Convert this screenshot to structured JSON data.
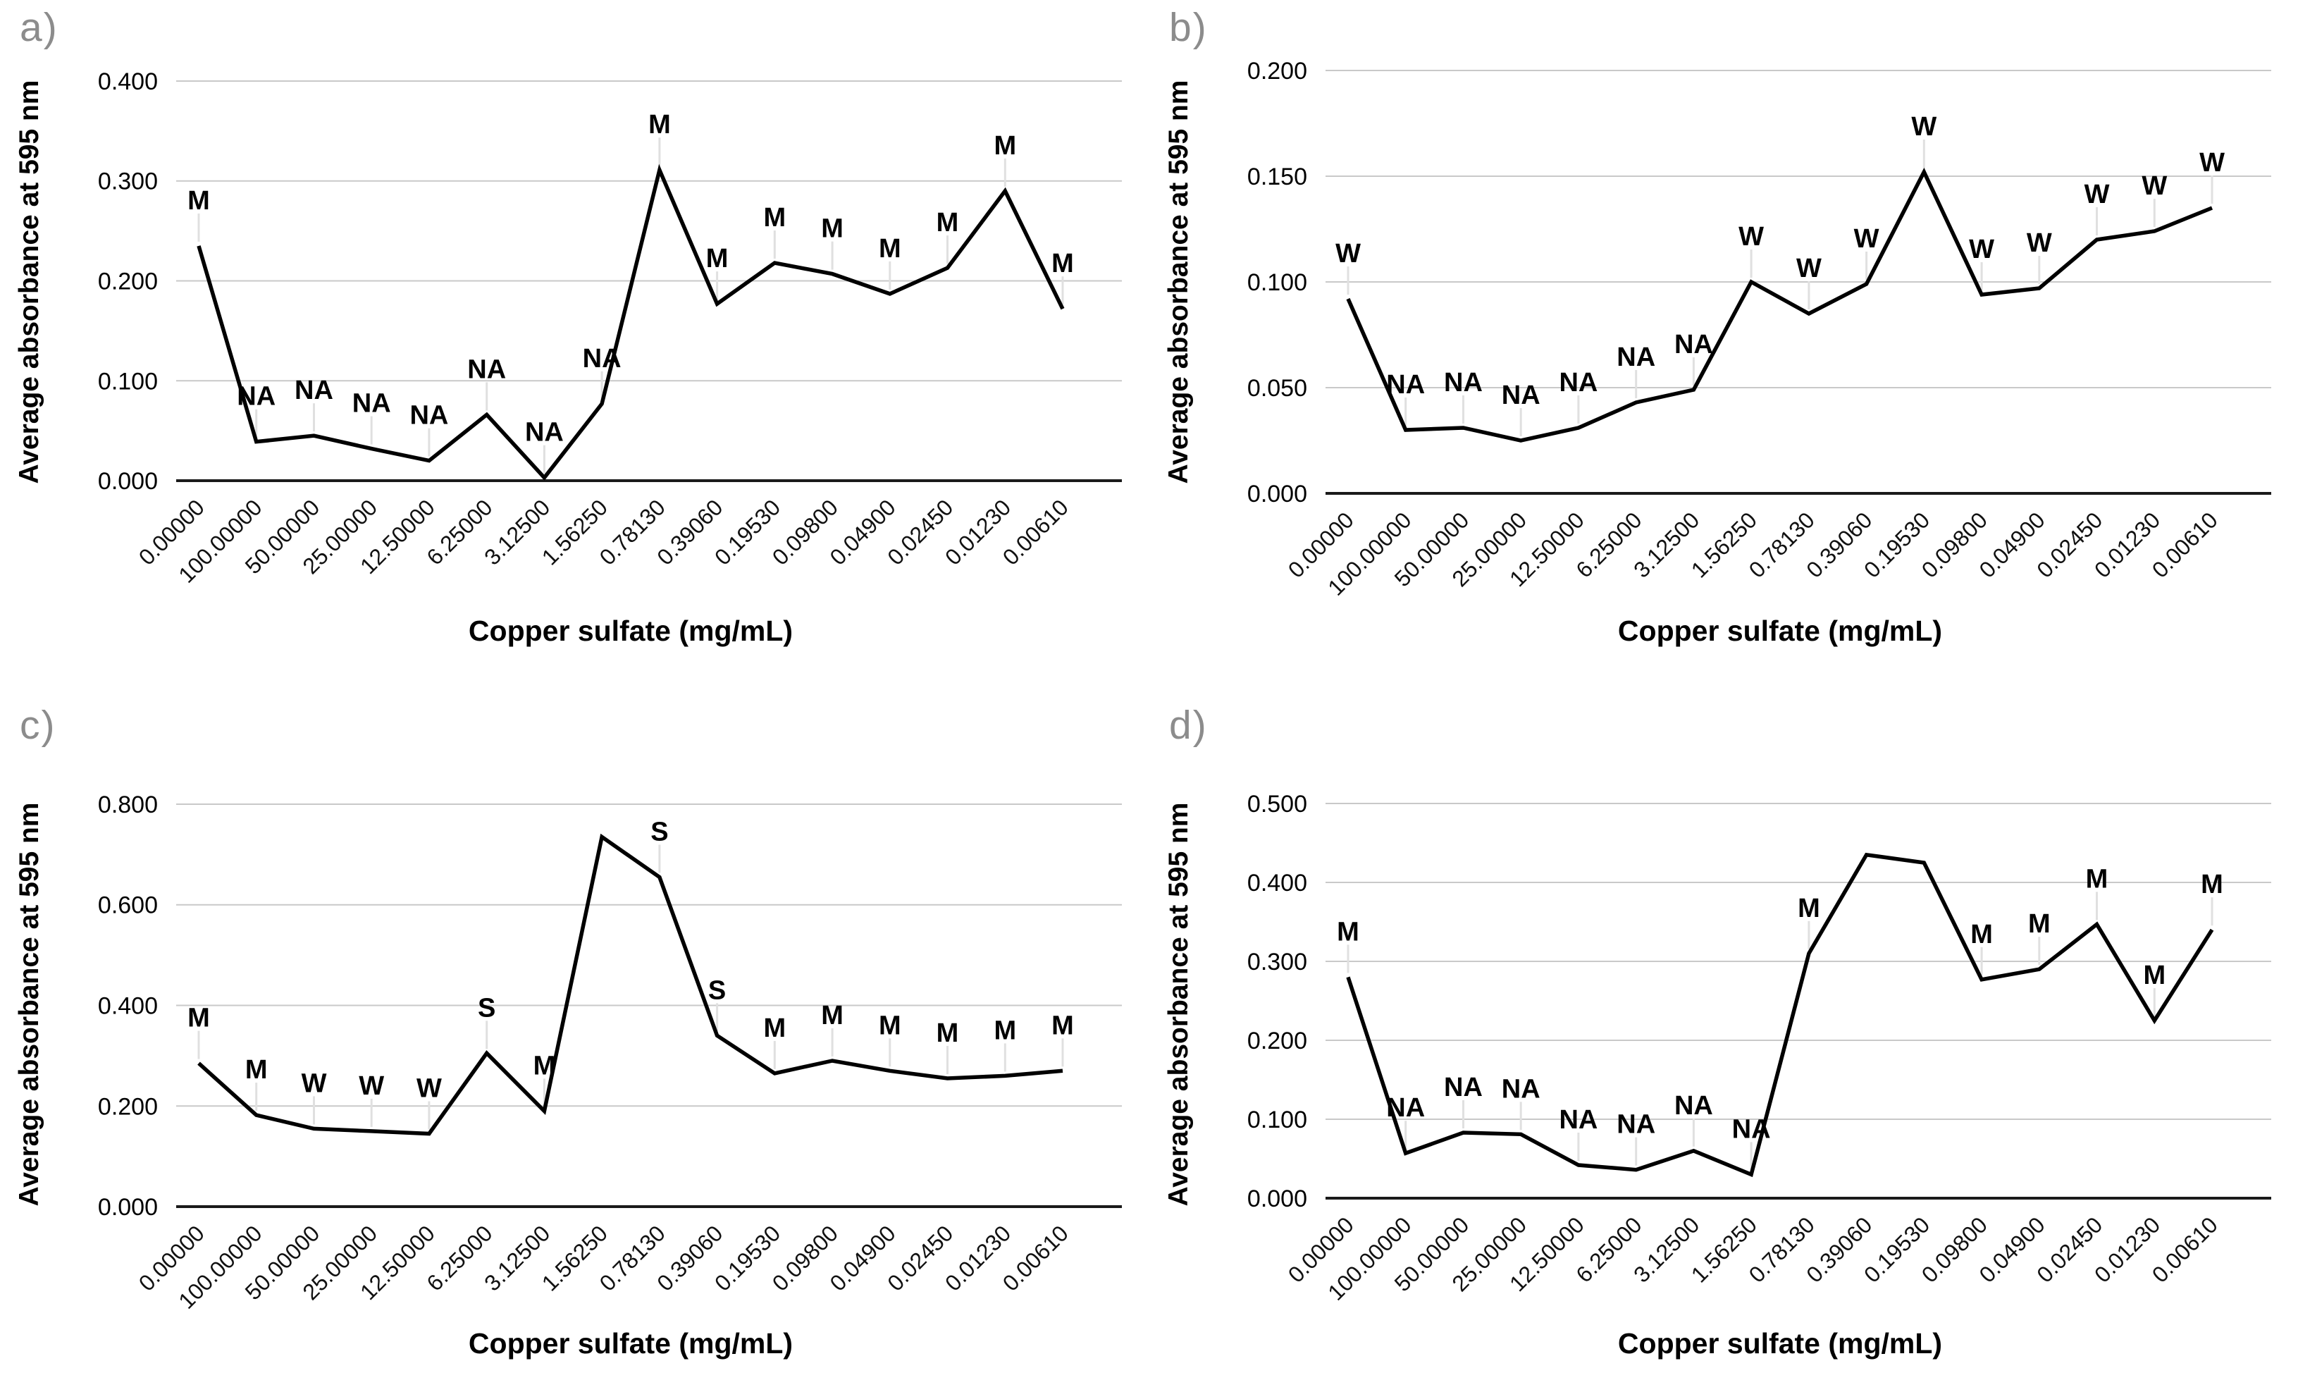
{
  "figure": {
    "background": "#ffffff",
    "series_color": "#000000",
    "gridline_color": "#c9c9c9",
    "axis_color": "#1a1a1a",
    "leader_color": "#e0e0e0",
    "panel_letter_color": "#8c8c8c"
  },
  "chart_data": [
    {
      "type": "line",
      "panel_label": "a)",
      "ylabel": "Average absorbance at 595 nm",
      "xlabel": "Copper sulfate (mg/mL)",
      "categories": [
        "0.00000",
        "100.00000",
        "50.00000",
        "25.00000",
        "12.50000",
        "6.25000",
        "3.12500",
        "1.56250",
        "0.78130",
        "0.39060",
        "0.19530",
        "0.09800",
        "0.04900",
        "0.02450",
        "0.01230",
        "0.00610"
      ],
      "values": [
        0.235,
        0.039,
        0.045,
        0.032,
        0.02,
        0.066,
        0.003,
        0.077,
        0.311,
        0.177,
        0.218,
        0.207,
        0.187,
        0.213,
        0.29,
        0.172
      ],
      "point_labels": [
        "M",
        "NA",
        "NA",
        "NA",
        "NA",
        "NA",
        "NA",
        "NA",
        "M",
        "M",
        "M",
        "M",
        "M",
        "M",
        "M",
        "M"
      ],
      "ylim": [
        0,
        0.4
      ],
      "ytick_step": 0.1,
      "ytick_format": "0.000",
      "grid": "horizontal",
      "legend": "none",
      "line_color": "#000000"
    },
    {
      "type": "line",
      "panel_label": "b)",
      "ylabel": "Average absorbance at 595 nm",
      "xlabel": "Copper sulfate (mg/mL)",
      "categories": [
        "0.00000",
        "100.00000",
        "50.00000",
        "25.00000",
        "12.50000",
        "6.25000",
        "3.12500",
        "1.56250",
        "0.78130",
        "0.39060",
        "0.19530",
        "0.09800",
        "0.04900",
        "0.02450",
        "0.01230",
        "0.00610"
      ],
      "values": [
        0.092,
        0.03,
        0.031,
        0.025,
        0.031,
        0.043,
        0.049,
        0.1,
        0.085,
        0.099,
        0.152,
        0.094,
        0.097,
        0.12,
        0.124,
        0.135
      ],
      "point_labels": [
        "W",
        "NA",
        "NA",
        "NA",
        "NA",
        "NA",
        "NA",
        "W",
        "W",
        "W",
        "W",
        "W",
        "W",
        "W",
        "W",
        "W"
      ],
      "ylim": [
        0,
        0.2
      ],
      "ytick_step": 0.05,
      "ytick_format": "0.000",
      "grid": "horizontal",
      "legend": "none",
      "line_color": "#000000"
    },
    {
      "type": "line",
      "panel_label": "c)",
      "ylabel": "Average absorbance at 595 nm",
      "xlabel": "Copper sulfate (mg/mL)",
      "categories": [
        "0.00000",
        "100.00000",
        "50.00000",
        "25.00000",
        "12.50000",
        "6.25000",
        "3.12500",
        "1.56250",
        "0.78130",
        "0.39060",
        "0.19530",
        "0.09800",
        "0.04900",
        "0.02450",
        "0.01230",
        "0.00610"
      ],
      "values": [
        0.285,
        0.182,
        0.155,
        0.15,
        0.145,
        0.305,
        0.19,
        0.735,
        0.655,
        0.34,
        0.265,
        0.29,
        0.27,
        0.255,
        0.26,
        0.27
      ],
      "point_labels": [
        "M",
        "M",
        "W",
        "W",
        "W",
        "S",
        "M",
        null,
        "S",
        "S",
        "M",
        "M",
        "M",
        "M",
        "M",
        "M"
      ],
      "ylim": [
        0,
        0.8
      ],
      "ytick_step": 0.2,
      "ytick_format": "0.000",
      "grid": "horizontal",
      "legend": "none",
      "line_color": "#000000"
    },
    {
      "type": "line",
      "panel_label": "d)",
      "ylabel": "Average absorbance at 595 nm",
      "xlabel": "Copper sulfate (mg/mL)",
      "categories": [
        "0.00000",
        "100.00000",
        "50.00000",
        "25.00000",
        "12.50000",
        "6.25000",
        "3.12500",
        "1.56250",
        "0.78130",
        "0.39060",
        "0.19530",
        "0.09800",
        "0.04900",
        "0.02450",
        "0.01230",
        "0.00610"
      ],
      "values": [
        0.28,
        0.057,
        0.083,
        0.081,
        0.042,
        0.036,
        0.06,
        0.03,
        0.31,
        0.435,
        0.425,
        0.277,
        0.29,
        0.347,
        0.225,
        0.34
      ],
      "point_labels": [
        "M",
        "NA",
        "NA",
        "NA",
        "NA",
        "NA",
        "NA",
        "NA",
        "M",
        null,
        null,
        "M",
        "M",
        "M",
        "M",
        "M"
      ],
      "ylim": [
        0,
        0.5
      ],
      "ytick_step": 0.1,
      "ytick_format": "0.000",
      "grid": "horizontal",
      "legend": "none",
      "line_color": "#000000"
    }
  ]
}
